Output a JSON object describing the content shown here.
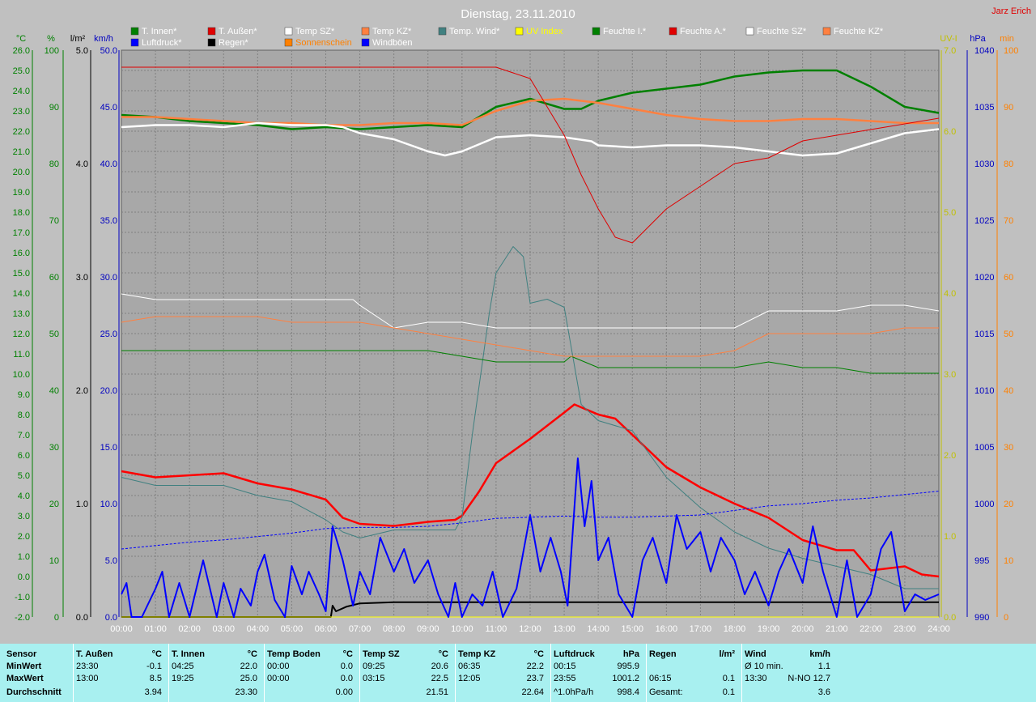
{
  "header": {
    "title": "Dienstag, 23.11.2010",
    "author": "Jarz Erich"
  },
  "legend": [
    {
      "label": "T. Innen*",
      "color": "#008000",
      "text_color": "#ffffff"
    },
    {
      "label": "T. Außen*",
      "color": "#e00000",
      "text_color": "#ffffff"
    },
    {
      "label": "Temp SZ*",
      "color": "#ffffff",
      "text_color": "#ffffff"
    },
    {
      "label": "Temp KZ*",
      "color": "#ff8040",
      "text_color": "#ffffff"
    },
    {
      "label": "Temp. Wind*",
      "color": "#408080",
      "text_color": "#ffffff"
    },
    {
      "label": "UV Index",
      "color": "#ffff00",
      "text_color": "#ffff00"
    },
    {
      "label": "Feuchte I.*",
      "color": "#008000",
      "text_color": "#ffffff"
    },
    {
      "label": "Feuchte A.*",
      "color": "#e00000",
      "text_color": "#ffffff"
    },
    {
      "label": "Feuchte SZ*",
      "color": "#ffffff",
      "text_color": "#ffffff"
    },
    {
      "label": "Feuchte KZ*",
      "color": "#ff8040",
      "text_color": "#ffffff"
    },
    {
      "label": "Luftdruck*",
      "color": "#0000ff",
      "text_color": "#ffffff"
    },
    {
      "label": "Regen*",
      "color": "#000000",
      "text_color": "#ffffff"
    },
    {
      "label": "Sonnenschein",
      "color": "#ff8000",
      "text_color": "#ff8000"
    },
    {
      "label": "Windböen",
      "color": "#0000ff",
      "text_color": "#ffffff"
    }
  ],
  "axes": {
    "temp": {
      "unit": "°C",
      "color": "#008000",
      "ticks": [
        "26.0",
        "25.0",
        "24.0",
        "23.0",
        "22.0",
        "21.0",
        "20.0",
        "19.0",
        "18.0",
        "17.0",
        "16.0",
        "15.0",
        "14.0",
        "13.0",
        "12.0",
        "11.0",
        "10.0",
        "9.0",
        "8.0",
        "7.0",
        "6.0",
        "5.0",
        "4.0",
        "3.0",
        "2.0",
        "1.0",
        "0.0",
        "-1.0",
        "-2.0"
      ]
    },
    "humidity": {
      "unit": "%",
      "color": "#008000",
      "ticks": [
        "100",
        "90",
        "80",
        "70",
        "60",
        "50",
        "40",
        "30",
        "20",
        "10",
        "0"
      ]
    },
    "rain": {
      "unit": "l/m²",
      "color": "#000000",
      "ticks": [
        "5.0",
        "4.0",
        "3.0",
        "2.0",
        "1.0",
        "0.0"
      ]
    },
    "wind": {
      "unit": "km/h",
      "color": "#0000c0",
      "ticks": [
        "50.0",
        "45.0",
        "40.0",
        "35.0",
        "30.0",
        "25.0",
        "20.0",
        "15.0",
        "10.0",
        "5.0",
        "0.0"
      ]
    },
    "uv": {
      "unit": "UV-I",
      "color": "#c0c000",
      "ticks": [
        "7.0",
        "6.0",
        "5.0",
        "4.0",
        "3.0",
        "2.0",
        "1.0",
        "0.0"
      ]
    },
    "pressure": {
      "unit": "hPa",
      "color": "#0000c0",
      "ticks": [
        "1040",
        "1035",
        "1030",
        "1025",
        "1020",
        "1015",
        "1010",
        "1005",
        "1000",
        "995",
        "990"
      ]
    },
    "sun": {
      "unit": "min",
      "color": "#ff8000",
      "ticks": [
        "100",
        "90",
        "80",
        "70",
        "60",
        "50",
        "40",
        "30",
        "20",
        "10",
        "0"
      ]
    },
    "time": {
      "ticks": [
        "00:00",
        "01:00",
        "02:00",
        "03:00",
        "04:00",
        "05:00",
        "06:00",
        "07:00",
        "08:00",
        "09:00",
        "10:00",
        "11:00",
        "12:00",
        "13:00",
        "14:00",
        "15:00",
        "16:00",
        "17:00",
        "18:00",
        "19:00",
        "20:00",
        "21:00",
        "22:00",
        "23:00",
        "24:00"
      ]
    }
  },
  "chart_data": {
    "type": "line",
    "title": "Dienstag, 23.11.2010",
    "x_unit": "hours",
    "grid": true,
    "legend_position": "top",
    "ylim_temp": [
      -2,
      26
    ],
    "ylim_humidity": [
      0,
      100
    ],
    "ylim_wind": [
      0,
      50
    ],
    "ylim_pressure": [
      990,
      1040
    ],
    "ylim_rain": [
      0,
      5
    ],
    "series": [
      {
        "name": "T. Außen*",
        "axis": "temp",
        "color": "#ff0000",
        "width": 2.5,
        "x": [
          0,
          1,
          2,
          3,
          4,
          5,
          6,
          6.5,
          7,
          8,
          9,
          9.8,
          10,
          10.5,
          11,
          12,
          13,
          13.3,
          14,
          14.5,
          15,
          16,
          17,
          18,
          19,
          20,
          21,
          21.5,
          22,
          23,
          23.5,
          24
        ],
        "y": [
          5.2,
          4.9,
          5.0,
          5.1,
          4.6,
          4.3,
          3.8,
          2.9,
          2.6,
          2.5,
          2.7,
          2.8,
          3.0,
          4.2,
          5.6,
          6.8,
          8.1,
          8.5,
          8.0,
          7.8,
          7.0,
          5.4,
          4.4,
          3.6,
          2.9,
          1.8,
          1.3,
          1.3,
          0.3,
          0.5,
          0.1,
          0.0
        ]
      },
      {
        "name": "Temp. Wind*",
        "axis": "temp",
        "color": "#408080",
        "width": 1,
        "x": [
          0,
          1,
          2,
          3,
          4,
          5,
          6,
          6.5,
          7,
          8,
          9,
          9.8,
          10,
          10.3,
          10.8,
          11,
          11.5,
          11.8,
          12,
          12.5,
          13,
          13.5,
          14,
          15,
          16,
          17,
          18,
          19,
          20,
          21,
          22,
          23,
          24
        ],
        "y": [
          4.9,
          4.5,
          4.5,
          4.5,
          4.0,
          3.7,
          2.8,
          2.2,
          1.9,
          2.3,
          2.3,
          2.3,
          2.9,
          7.0,
          13.0,
          15.0,
          16.3,
          15.8,
          13.5,
          13.7,
          13.3,
          8.5,
          7.7,
          7.2,
          4.9,
          3.4,
          2.2,
          1.4,
          0.9,
          0.5,
          0.1,
          -0.6,
          -0.6
        ]
      },
      {
        "name": "T. Innen*",
        "axis": "temp",
        "color": "#008000",
        "width": 2.5,
        "x": [
          0,
          1,
          2,
          3,
          4,
          5,
          6,
          7,
          8,
          9,
          10,
          11,
          12,
          13,
          13.5,
          14,
          15,
          16,
          17,
          18,
          19,
          20,
          21,
          22,
          23,
          24
        ],
        "y": [
          22.8,
          22.7,
          22.5,
          22.4,
          22.3,
          22.1,
          22.2,
          22.1,
          22.2,
          22.3,
          22.2,
          23.2,
          23.6,
          23.1,
          23.1,
          23.5,
          23.9,
          24.1,
          24.3,
          24.7,
          24.9,
          25.0,
          25.0,
          24.2,
          23.2,
          22.9
        ]
      },
      {
        "name": "Temp KZ*",
        "axis": "temp",
        "color": "#ff8040",
        "width": 2.5,
        "x": [
          0,
          1,
          2,
          3,
          4,
          5,
          6,
          7,
          8,
          9,
          10,
          11,
          12,
          13,
          14,
          15,
          16,
          17,
          18,
          19,
          20,
          21,
          22,
          23,
          24
        ],
        "y": [
          22.7,
          22.7,
          22.6,
          22.5,
          22.4,
          22.4,
          22.3,
          22.3,
          22.4,
          22.4,
          22.3,
          23.0,
          23.5,
          23.6,
          23.4,
          23.1,
          22.8,
          22.6,
          22.5,
          22.5,
          22.6,
          22.6,
          22.5,
          22.4,
          22.4
        ]
      },
      {
        "name": "Temp SZ*",
        "axis": "temp",
        "color": "#ffffff",
        "width": 2.5,
        "x": [
          0,
          1,
          2,
          3,
          4,
          5,
          6,
          6.5,
          7,
          8,
          9,
          9.5,
          10,
          11,
          12,
          13,
          13.8,
          14,
          15,
          16,
          17,
          18,
          19,
          20,
          21,
          22,
          23,
          24
        ],
        "y": [
          22.2,
          22.3,
          22.3,
          22.2,
          22.4,
          22.3,
          22.3,
          22.2,
          21.9,
          21.6,
          21.0,
          20.8,
          21.0,
          21.7,
          21.8,
          21.7,
          21.5,
          21.3,
          21.2,
          21.3,
          21.3,
          21.2,
          21.0,
          20.8,
          20.9,
          21.4,
          21.9,
          22.1
        ]
      },
      {
        "name": "Feuchte A.*",
        "axis": "humidity",
        "color": "#e00000",
        "width": 1,
        "x": [
          0,
          1,
          2,
          3,
          4,
          5,
          6,
          7,
          8,
          9,
          10,
          11,
          12,
          13,
          13.5,
          14,
          14.5,
          15,
          16,
          17,
          18,
          19,
          20,
          21,
          22,
          23,
          24
        ],
        "y": [
          97,
          97,
          97,
          97,
          97,
          97,
          97,
          97,
          97,
          97,
          97,
          97,
          95,
          85,
          78,
          72,
          67,
          66,
          72,
          76,
          80,
          81,
          84,
          85,
          86,
          87,
          88
        ]
      },
      {
        "name": "Feuchte I.*",
        "axis": "humidity",
        "color": "#008000",
        "width": 1,
        "x": [
          0,
          1,
          2,
          3,
          4,
          5,
          6,
          7,
          8,
          9,
          10,
          11,
          12,
          13,
          13.2,
          14,
          15,
          16,
          17,
          18,
          19,
          20,
          21,
          22,
          23,
          24
        ],
        "y": [
          47,
          47,
          47,
          47,
          47,
          47,
          47,
          47,
          47,
          47,
          46,
          45,
          45,
          45,
          46,
          44,
          44,
          44,
          44,
          44,
          45,
          44,
          44,
          43,
          43,
          43
        ]
      },
      {
        "name": "Feuchte SZ*",
        "axis": "humidity",
        "color": "#ffffff",
        "width": 1,
        "x": [
          0,
          1,
          2,
          3,
          4,
          5,
          6,
          6.8,
          7,
          8,
          9,
          10,
          11,
          12,
          13,
          14,
          15,
          16,
          17,
          18,
          19,
          20,
          21,
          22,
          23,
          24
        ],
        "y": [
          57,
          56,
          56,
          56,
          56,
          56,
          56,
          56,
          55,
          51,
          52,
          52,
          51,
          51,
          51,
          51,
          51,
          51,
          51,
          51,
          54,
          54,
          54,
          55,
          55,
          54
        ]
      },
      {
        "name": "Feuchte KZ*",
        "axis": "humidity",
        "color": "#ff8040",
        "width": 1,
        "x": [
          0,
          1,
          2,
          3,
          4,
          5,
          6,
          7,
          8,
          9,
          10,
          11,
          12,
          13,
          14,
          15,
          16,
          17,
          18,
          19,
          20,
          21,
          22,
          23,
          24
        ],
        "y": [
          52,
          53,
          53,
          53,
          53,
          52,
          52,
          52,
          51,
          50,
          49,
          48,
          47,
          46,
          46,
          46,
          46,
          46,
          47,
          50,
          50,
          50,
          50,
          51,
          51
        ]
      },
      {
        "name": "Luftdruck*",
        "axis": "pressure",
        "color": "#0000ff",
        "width": 1,
        "dashed": true,
        "x": [
          0,
          1,
          2,
          3,
          4,
          5,
          6,
          7,
          8,
          9,
          10,
          11,
          12,
          13,
          14,
          15,
          16,
          17,
          18,
          19,
          20,
          21,
          22,
          23,
          24
        ],
        "y": [
          996.0,
          996.3,
          996.6,
          996.8,
          997.1,
          997.4,
          997.8,
          997.9,
          997.9,
          998.0,
          998.3,
          998.7,
          998.8,
          998.9,
          998.8,
          998.8,
          998.9,
          999.0,
          999.4,
          999.8,
          1000.0,
          1000.3,
          1000.5,
          1000.8,
          1001.1
        ]
      },
      {
        "name": "Regen*",
        "axis": "rain",
        "color": "#000000",
        "width": 2,
        "x": [
          0,
          6.15,
          6.2,
          6.3,
          6.6,
          7,
          8,
          24
        ],
        "y": [
          0,
          0,
          0.1,
          0.05,
          0.09,
          0.12,
          0.13,
          0.13
        ]
      },
      {
        "name": "UV Index",
        "axis": "uv",
        "color": "#ffff00",
        "width": 1,
        "x": [
          0,
          24
        ],
        "y": [
          0,
          0
        ]
      },
      {
        "name": "Windböen",
        "axis": "wind",
        "color": "#0000ff",
        "width": 2,
        "x": [
          0,
          0.15,
          0.3,
          0.6,
          1.0,
          1.2,
          1.4,
          1.7,
          2.0,
          2.2,
          2.4,
          2.8,
          3.0,
          3.3,
          3.5,
          3.8,
          4.0,
          4.2,
          4.5,
          4.8,
          5.0,
          5.3,
          5.5,
          5.8,
          6.0,
          6.2,
          6.5,
          6.8,
          7.0,
          7.3,
          7.6,
          8.0,
          8.3,
          8.6,
          9.0,
          9.3,
          9.6,
          9.8,
          10.0,
          10.3,
          10.6,
          10.9,
          11.2,
          11.6,
          12.0,
          12.3,
          12.6,
          12.9,
          13.1,
          13.4,
          13.6,
          13.8,
          14.0,
          14.3,
          14.6,
          15.0,
          15.3,
          15.6,
          16.0,
          16.3,
          16.6,
          17.0,
          17.3,
          17.6,
          18.0,
          18.3,
          18.6,
          19.0,
          19.3,
          19.6,
          20.0,
          20.3,
          20.6,
          21.0,
          21.3,
          21.6,
          22.0,
          22.3,
          22.6,
          23.0,
          23.3,
          23.6,
          24.0
        ],
        "y": [
          2.0,
          3.0,
          0,
          0,
          2.5,
          4.0,
          0,
          3.0,
          0,
          2.5,
          5.0,
          0,
          3.0,
          0,
          2.5,
          1.0,
          4.0,
          5.5,
          1.5,
          0,
          4.5,
          2.0,
          4.0,
          2.0,
          0.5,
          8.0,
          5.0,
          1.0,
          4.0,
          2.0,
          7.0,
          4.0,
          6.0,
          3.0,
          5.0,
          2.0,
          0,
          3.0,
          0,
          2.0,
          1.0,
          4.0,
          0,
          2.5,
          9.0,
          4.0,
          7.0,
          4.0,
          1.0,
          14.0,
          8.0,
          12.0,
          5.0,
          7.0,
          2.0,
          0,
          5.0,
          7.0,
          3.0,
          9.0,
          6.0,
          7.5,
          4.0,
          7.0,
          5.0,
          2.0,
          4.0,
          1.0,
          4.0,
          6.0,
          3.0,
          8.0,
          4.0,
          0,
          5.0,
          0,
          2.0,
          6.0,
          7.5,
          0.5,
          2.0,
          1.5,
          2.0
        ]
      }
    ]
  },
  "summary": {
    "row_labels": [
      "Sensor",
      "MinWert",
      "MaxWert",
      "Durchschnitt"
    ],
    "groups": [
      {
        "name": "T. Außen",
        "unit": "°C",
        "rows": [
          [
            "23:30",
            "-0.1"
          ],
          [
            "13:00",
            "8.5"
          ],
          [
            "",
            "3.94"
          ]
        ]
      },
      {
        "name": "T. Innen",
        "unit": "°C",
        "rows": [
          [
            "04:25",
            "22.0"
          ],
          [
            "19:25",
            "25.0"
          ],
          [
            "",
            "23.30"
          ]
        ]
      },
      {
        "name": "Temp Boden",
        "unit": "°C",
        "rows": [
          [
            "00:00",
            "0.0"
          ],
          [
            "00:00",
            "0.0"
          ],
          [
            "",
            "0.00"
          ]
        ]
      },
      {
        "name": "Temp SZ",
        "unit": "°C",
        "rows": [
          [
            "09:25",
            "20.6"
          ],
          [
            "03:15",
            "22.5"
          ],
          [
            "",
            "21.51"
          ]
        ]
      },
      {
        "name": "Temp KZ",
        "unit": "°C",
        "rows": [
          [
            "06:35",
            "22.2"
          ],
          [
            "12:05",
            "23.7"
          ],
          [
            "",
            "22.64"
          ]
        ]
      },
      {
        "name": "Luftdruck",
        "unit": "hPa",
        "rows": [
          [
            "00:15",
            "995.9"
          ],
          [
            "23:55",
            "1001.2"
          ],
          [
            "^1.0hPa/h",
            "998.4"
          ]
        ]
      },
      {
        "name": "Regen",
        "unit": "l/m²",
        "rows": [
          [
            "",
            ""
          ],
          [
            "06:15",
            "0.1"
          ],
          [
            "Gesamt:",
            "0.1"
          ]
        ]
      },
      {
        "name": "Wind",
        "unit": "km/h",
        "rows": [
          [
            "Ø 10 min.",
            "1.1"
          ],
          [
            "13:30",
            "N-NO 12.7"
          ],
          [
            "",
            "3.6"
          ]
        ]
      }
    ]
  }
}
